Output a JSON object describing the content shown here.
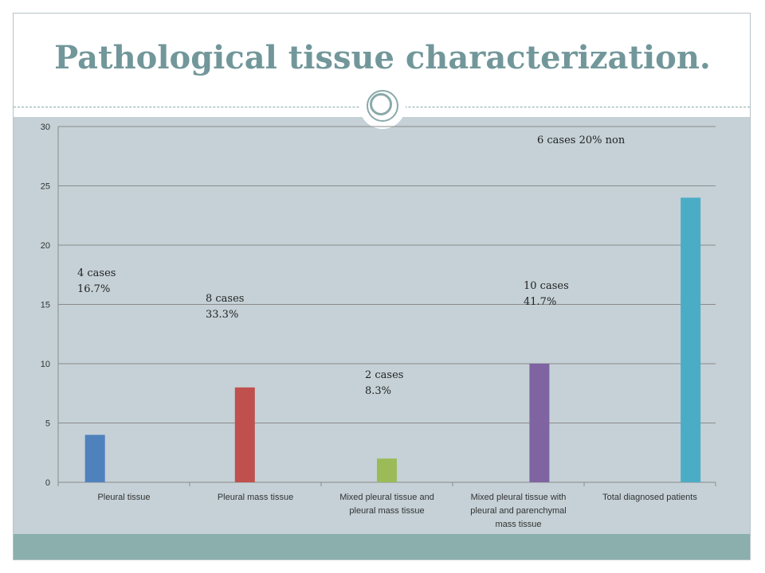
{
  "slide": {
    "title": "Pathological tissue characterization.",
    "colors": {
      "title": "#72979a",
      "body_bg": "#c5d1d7",
      "footer": "#8aafad",
      "divider": "#8aa9ab"
    },
    "divider_icon": "circle-ornament-icon"
  },
  "chart_data": {
    "type": "bar",
    "categories": [
      [
        "Pleural tissue"
      ],
      [
        "Pleural mass tissue"
      ],
      [
        "Mixed pleural tissue and",
        "pleural mass tissue"
      ],
      [
        "Mixed pleural tissue with",
        "pleural and parenchymal",
        "mass tissue"
      ],
      [
        "Total diagnosed patients"
      ]
    ],
    "values": [
      4,
      8,
      2,
      10,
      24
    ],
    "colors": [
      "#4f81bd",
      "#c0504d",
      "#9bbb59",
      "#8064a2",
      "#4bacc6"
    ],
    "ylim": [
      0,
      30
    ],
    "yticks": [
      0,
      5,
      10,
      15,
      20,
      25,
      30
    ],
    "grid": true,
    "title": "",
    "xlabel": "",
    "ylabel": "",
    "annotations": [
      {
        "category_index": 0,
        "lines": [
          "4 cases",
          "16.7%"
        ]
      },
      {
        "category_index": 1,
        "lines": [
          "8 cases",
          "33.3%"
        ]
      },
      {
        "category_index": 2,
        "lines": [
          "2 cases",
          "8.3%"
        ]
      },
      {
        "category_index": 3,
        "lines": [
          "10 cases",
          "41.7%"
        ]
      },
      {
        "category_index": 4,
        "lines": [
          "6 cases 20% non"
        ]
      }
    ]
  }
}
